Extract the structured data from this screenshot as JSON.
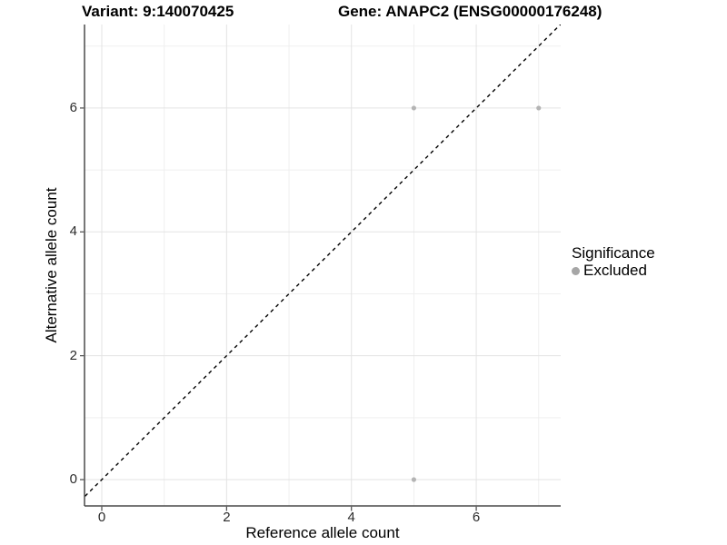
{
  "chart_data": {
    "type": "scatter",
    "title_left": "Variant: 9:140070425",
    "title_right": "Gene: ANAPC2 (ENSG00000176248)",
    "xlabel": "Reference allele count",
    "ylabel": "Alternative allele count",
    "x_ticks": [
      0,
      2,
      4,
      6
    ],
    "y_ticks": [
      0,
      2,
      4,
      6
    ],
    "x_minor": [
      1,
      3,
      5,
      7
    ],
    "y_minor": [
      1,
      3,
      5,
      7
    ],
    "xlim": [
      -0.28,
      7.35
    ],
    "ylim": [
      -0.43,
      7.35
    ],
    "identity_line": {
      "equation": "y = x",
      "style": "dashed",
      "color": "#000000"
    },
    "series": [
      {
        "name": "Excluded",
        "color": "#b4b4b4",
        "points": [
          {
            "x": 5,
            "y": 6
          },
          {
            "x": 7,
            "y": 6
          },
          {
            "x": 5,
            "y": 0
          }
        ]
      }
    ],
    "legend": {
      "title": "Significance",
      "position": "right",
      "items": [
        {
          "label": "Excluded",
          "color": "#a6a6a6"
        }
      ]
    },
    "grid": {
      "major_color": "#e3e3e3",
      "minor_color": "#efefef",
      "background": "#ffffff"
    },
    "axis_color": "#4a4a4a"
  }
}
